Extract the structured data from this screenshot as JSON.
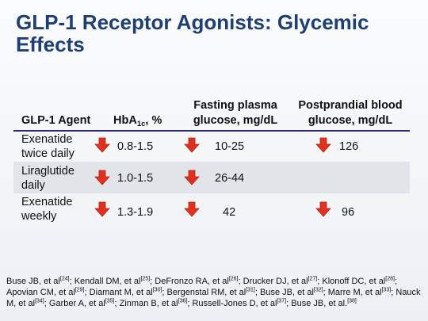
{
  "title": {
    "line1": "GLP-1 Receptor Agonists: Glycemic",
    "line2": "Effects"
  },
  "table": {
    "headers": {
      "agent": "GLP-1 Agent",
      "hba1c_prefix": "HbA",
      "hba1c_sub": "1c",
      "hba1c_suffix": ", %",
      "fpg_line1": "Fasting plasma",
      "fpg_line2": "glucose, mg/dL",
      "ppg_line1": "Postprandial blood",
      "ppg_line2": "glucose, mg/dL"
    },
    "rows": [
      {
        "agent_line1": "Exenatide",
        "agent_line2": "twice daily",
        "hba1c": "0.8-1.5",
        "fpg": "10-25",
        "ppg": "126"
      },
      {
        "agent_line1": "Liraglutide",
        "agent_line2": "daily",
        "hba1c": "1.0-1.5",
        "fpg": "26-44",
        "ppg": ""
      },
      {
        "agent_line1": "Exenatide",
        "agent_line2": "weekly",
        "hba1c": "1.3-1.9",
        "fpg": "42",
        "ppg": "96"
      }
    ]
  },
  "arrow_icon": "down-arrow-icon",
  "colors": {
    "title": "#1f3f73",
    "arrow": "#e0301e",
    "rule": "#2a2a6e",
    "row_shade": "#e1e4e8"
  },
  "references": [
    {
      "text": "Buse JB, et al",
      "sup": "[24]",
      "sep": "; "
    },
    {
      "text": "Kendall DM, et al",
      "sup": "[25]",
      "sep": "; "
    },
    {
      "text": "DeFronzo RA, et al",
      "sup": "[26]",
      "sep": "; "
    },
    {
      "text": "Drucker DJ, et al",
      "sup": "[27]",
      "sep": "; "
    },
    {
      "text": "Klonoff DC, et al",
      "sup": "[28]",
      "sep": "; "
    },
    {
      "text": "Apovian CM, et al",
      "sup": "[29]",
      "sep": "; "
    },
    {
      "text": "Diamant M, et al",
      "sup": "[30]",
      "sep": "; "
    },
    {
      "text": "Bergenstal RM, et al",
      "sup": "[31]",
      "sep": "; "
    },
    {
      "text": "Buse JB, et al",
      "sup": "[32]",
      "sep": "; "
    },
    {
      "text": "Marre M, et al",
      "sup": "[33]",
      "sep": "; "
    },
    {
      "text": "Nauck M, et al",
      "sup": "[34]",
      "sep": "; "
    },
    {
      "text": "Garber A, et al",
      "sup": "[35]",
      "sep": "; "
    },
    {
      "text": "Zinman B, et al",
      "sup": "[36]",
      "sep": "; "
    },
    {
      "text": "Russell-Jones D, et al",
      "sup": "[37]",
      "sep": "; "
    },
    {
      "text": "Buse JB, et al.",
      "sup": "[38]",
      "sep": ""
    }
  ]
}
